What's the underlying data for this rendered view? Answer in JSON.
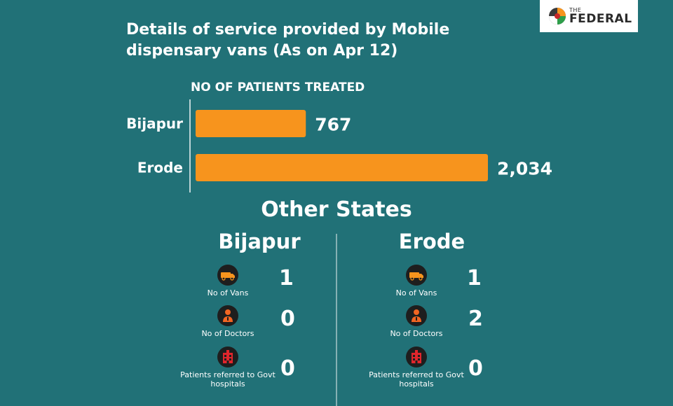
{
  "title": {
    "line1": "Details of service provided by Mobile",
    "line2": "dispensary vans (As on Apr 12)"
  },
  "logo": {
    "small": "THE",
    "big": "FEDERAL"
  },
  "chart_data": {
    "type": "bar",
    "orientation": "horizontal",
    "title": "NO OF PATIENTS TREATED",
    "categories": [
      "Bijapur",
      "Erode"
    ],
    "values": [
      767,
      2034
    ],
    "value_labels": [
      "767",
      "2,034"
    ],
    "color": "#f7941d",
    "xlim": [
      0,
      2034
    ]
  },
  "other_states": {
    "title": "Other States",
    "regions": [
      {
        "name": "Bijapur",
        "stats": [
          {
            "icon": "van-icon",
            "label": "No of Vans",
            "value": "1"
          },
          {
            "icon": "doctor-icon",
            "label": "No of Doctors",
            "value": "0"
          },
          {
            "icon": "hospital-icon",
            "label": "Patients referred to Govt hospitals",
            "value": "0"
          }
        ]
      },
      {
        "name": "Erode",
        "stats": [
          {
            "icon": "van-icon",
            "label": "No of Vans",
            "value": "1"
          },
          {
            "icon": "doctor-icon",
            "label": "No of Doctors",
            "value": "2"
          },
          {
            "icon": "hospital-icon",
            "label": "Patients referred to Govt hospitals",
            "value": "0"
          }
        ]
      }
    ]
  },
  "colors": {
    "background": "#217177",
    "bar": "#f7941d",
    "icon_van": "#f7941d",
    "icon_doctor": "#f26522",
    "icon_hospital": "#e0262c"
  }
}
